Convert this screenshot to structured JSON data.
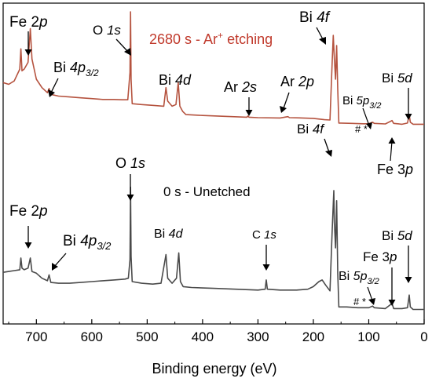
{
  "chart_data": {
    "type": "line",
    "xlabel": "Binding energy (eV)",
    "ylabel": "",
    "xlim": [
      760,
      0
    ],
    "x_reversed": true,
    "xticks": [
      700,
      600,
      500,
      400,
      300,
      200,
      100,
      0
    ],
    "y_axis_ticks_labels": false,
    "grid": false,
    "legend": "none",
    "series": [
      {
        "name": "2680 s - Ar+ etching",
        "color": "#b5533f",
        "points": [
          [
            760,
            0.58
          ],
          [
            750,
            0.57
          ],
          [
            740,
            0.59
          ],
          [
            730,
            0.66
          ],
          [
            728,
            0.78
          ],
          [
            726,
            0.65
          ],
          [
            722,
            0.66
          ],
          [
            715,
            0.7
          ],
          [
            711,
            0.9
          ],
          [
            708,
            0.72
          ],
          [
            700,
            0.6
          ],
          [
            690,
            0.55
          ],
          [
            680,
            0.52
          ],
          [
            677,
            0.545
          ],
          [
            674,
            0.51
          ],
          [
            660,
            0.5
          ],
          [
            640,
            0.495
          ],
          [
            620,
            0.49
          ],
          [
            600,
            0.485
          ],
          [
            580,
            0.48
          ],
          [
            560,
            0.48
          ],
          [
            545,
            0.478
          ],
          [
            535,
            0.478
          ],
          [
            531,
            0.64
          ],
          [
            530,
            1.0
          ],
          [
            529,
            0.6
          ],
          [
            527,
            0.455
          ],
          [
            510,
            0.45
          ],
          [
            490,
            0.445
          ],
          [
            470,
            0.44
          ],
          [
            466,
            0.55
          ],
          [
            463,
            0.47
          ],
          [
            455,
            0.44
          ],
          [
            448,
            0.45
          ],
          [
            444,
            0.58
          ],
          [
            441,
            0.44
          ],
          [
            436,
            0.41
          ],
          [
            430,
            0.39
          ],
          [
            400,
            0.385
          ],
          [
            360,
            0.38
          ],
          [
            320,
            0.375
          ],
          [
            318,
            0.382
          ],
          [
            316,
            0.375
          ],
          [
            300,
            0.372
          ],
          [
            260,
            0.37
          ],
          [
            246,
            0.378
          ],
          [
            243,
            0.372
          ],
          [
            220,
            0.37
          ],
          [
            200,
            0.368
          ],
          [
            180,
            0.36
          ],
          [
            170,
            0.358
          ],
          [
            166,
            0.7
          ],
          [
            164,
            0.86
          ],
          [
            162,
            0.72
          ],
          [
            160,
            0.6
          ],
          [
            158,
            0.8
          ],
          [
            156,
            0.54
          ],
          [
            154,
            0.34
          ],
          [
            150,
            0.34
          ],
          [
            130,
            0.338
          ],
          [
            110,
            0.336
          ],
          [
            100,
            0.336
          ],
          [
            93,
            0.345
          ],
          [
            90,
            0.338
          ],
          [
            70,
            0.335
          ],
          [
            58,
            0.355
          ],
          [
            55,
            0.338
          ],
          [
            40,
            0.333
          ],
          [
            30,
            0.34
          ],
          [
            27,
            0.39
          ],
          [
            25,
            0.345
          ],
          [
            20,
            0.333
          ],
          [
            0,
            0.333
          ]
        ]
      },
      {
        "name": "0 s - Unetched",
        "color": "#4a4a4a",
        "points": [
          [
            760,
            -0.545
          ],
          [
            750,
            -0.54
          ],
          [
            740,
            -0.535
          ],
          [
            730,
            -0.53
          ],
          [
            728,
            -0.46
          ],
          [
            726,
            -0.52
          ],
          [
            722,
            -0.53
          ],
          [
            715,
            -0.52
          ],
          [
            711,
            -0.46
          ],
          [
            708,
            -0.54
          ],
          [
            700,
            -0.55
          ],
          [
            690,
            -0.58
          ],
          [
            680,
            -0.595
          ],
          [
            677,
            -0.56
          ],
          [
            674,
            -0.605
          ],
          [
            660,
            -0.61
          ],
          [
            640,
            -0.61
          ],
          [
            620,
            -0.605
          ],
          [
            600,
            -0.6
          ],
          [
            580,
            -0.595
          ],
          [
            560,
            -0.59
          ],
          [
            540,
            -0.585
          ],
          [
            534,
            -0.58
          ],
          [
            531,
            -0.47
          ],
          [
            530,
            -0.04
          ],
          [
            529,
            -0.45
          ],
          [
            527,
            -0.6
          ],
          [
            510,
            -0.61
          ],
          [
            490,
            -0.615
          ],
          [
            475,
            -0.61
          ],
          [
            466,
            -0.44
          ],
          [
            463,
            -0.58
          ],
          [
            455,
            -0.61
          ],
          [
            447,
            -0.58
          ],
          [
            443,
            -0.43
          ],
          [
            440,
            -0.6
          ],
          [
            435,
            -0.63
          ],
          [
            420,
            -0.635
          ],
          [
            380,
            -0.64
          ],
          [
            340,
            -0.645
          ],
          [
            300,
            -0.65
          ],
          [
            287,
            -0.645
          ],
          [
            285,
            -0.59
          ],
          [
            283,
            -0.645
          ],
          [
            260,
            -0.65
          ],
          [
            230,
            -0.65
          ],
          [
            210,
            -0.645
          ],
          [
            200,
            -0.63
          ],
          [
            190,
            -0.6
          ],
          [
            184,
            -0.59
          ],
          [
            178,
            -0.62
          ],
          [
            170,
            -0.655
          ],
          [
            166,
            -0.3
          ],
          [
            163,
            -0.06
          ],
          [
            162,
            -0.25
          ],
          [
            160,
            -0.4
          ],
          [
            158,
            -0.12
          ],
          [
            156,
            -0.55
          ],
          [
            154,
            -0.75
          ],
          [
            140,
            -0.75
          ],
          [
            120,
            -0.755
          ],
          [
            100,
            -0.755
          ],
          [
            93,
            -0.745
          ],
          [
            90,
            -0.755
          ],
          [
            70,
            -0.76
          ],
          [
            58,
            -0.73
          ],
          [
            55,
            -0.76
          ],
          [
            40,
            -0.76
          ],
          [
            30,
            -0.755
          ],
          [
            27,
            -0.68
          ],
          [
            25,
            -0.75
          ],
          [
            20,
            -0.765
          ],
          [
            0,
            -0.765
          ]
        ]
      }
    ],
    "annotations": {
      "etched_title": "2680 s - Ar",
      "etched_title_sup": "+",
      "etched_title_tail": " etching",
      "unetched_title": "0 s - Unetched",
      "fe2p_top": "Fe 2",
      "p": "p",
      "o1s": "O ",
      "o1s_it": "1s",
      "bi4f": "Bi ",
      "bi4f_it": "4f",
      "bi4p": "Bi ",
      "bi4p_it": "4p",
      "bi4p_sub": "3/2",
      "bi4d": "Bi ",
      "bi4d_it": "4d",
      "ar2s": "Ar ",
      "ar2s_it": "2s",
      "ar2p": "Ar ",
      "ar2p_it": "2p",
      "bi5d": "Bi ",
      "bi5d_it": "5d",
      "bi5p": "Bi ",
      "bi5p_it": "5p",
      "bi5p_sub": "3/2",
      "hash_star": "# *",
      "fe3p": "Fe 3",
      "c1s": "C ",
      "c1s_it": "1s"
    }
  }
}
